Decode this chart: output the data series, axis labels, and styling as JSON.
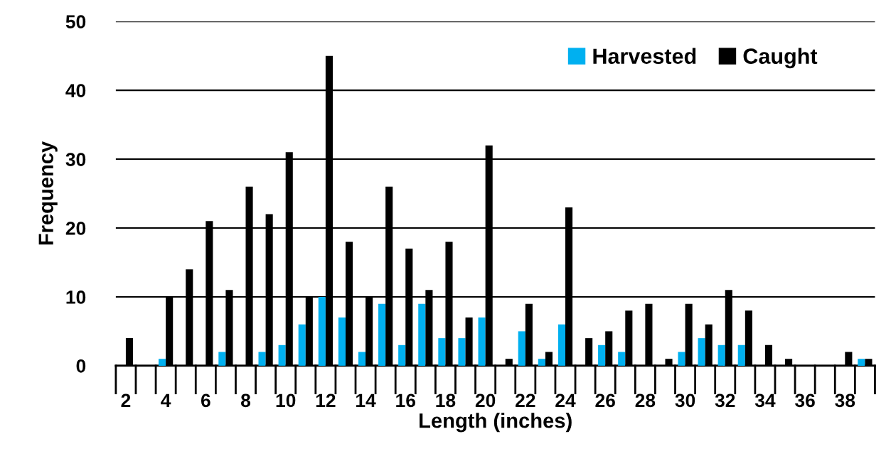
{
  "chart_data": {
    "type": "bar",
    "xlabel": "Length (inches)",
    "ylabel": "Frequency",
    "categories": [
      "2",
      null,
      "4",
      null,
      "6",
      null,
      "8",
      null,
      "10",
      null,
      "12",
      null,
      "14",
      null,
      "16",
      null,
      "18",
      null,
      "20",
      null,
      "22",
      null,
      "24",
      null,
      "26",
      null,
      "28",
      null,
      "30",
      null,
      "32",
      null,
      "34",
      null,
      "36",
      null,
      "38",
      null
    ],
    "series": [
      {
        "name": "Harvested",
        "color": "#00b0f0",
        "values": [
          0,
          0,
          1,
          0,
          0,
          2,
          0,
          2,
          3,
          6,
          10,
          7,
          2,
          9,
          3,
          9,
          4,
          4,
          7,
          0,
          5,
          1,
          6,
          0,
          3,
          2,
          0,
          0,
          2,
          4,
          3,
          3,
          0,
          0,
          0,
          0,
          0,
          1
        ]
      },
      {
        "name": "Caught",
        "color": "#000000",
        "values": [
          4,
          0,
          10,
          14,
          21,
          11,
          26,
          22,
          31,
          10,
          45,
          18,
          10,
          26,
          17,
          11,
          18,
          7,
          32,
          1,
          9,
          2,
          23,
          4,
          5,
          8,
          9,
          1,
          9,
          6,
          11,
          8,
          3,
          1,
          0,
          0,
          2,
          1
        ]
      }
    ],
    "ylim": [
      0,
      50
    ],
    "yticks": [
      0,
      10,
      20,
      30,
      40,
      50
    ],
    "grid": "y",
    "legend": "top right"
  }
}
